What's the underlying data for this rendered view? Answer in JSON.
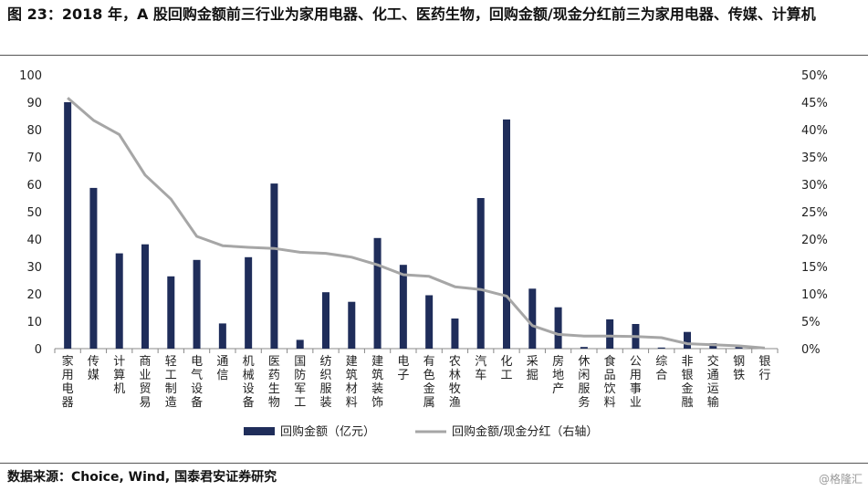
{
  "title": "图 23：2018 年，A 股回购金额前三行业为家用电器、化工、医药生物，回购金额/现金分红前三为家用电器、传媒、计算机",
  "source": "数据来源：Choice, Wind, 国泰君安证券研究",
  "watermark": "@格隆汇",
  "colors": {
    "bar": "#1f2d5a",
    "line": "#a6a6a6",
    "axis": "#888888"
  },
  "chart_data": {
    "type": "bar",
    "categories": [
      "家用电器",
      "传媒",
      "计算机",
      "商业贸易",
      "轻工制造",
      "电气设备",
      "通信",
      "机械设备",
      "医药生物",
      "国防军工",
      "纺织服装",
      "建筑材料",
      "建筑装饰",
      "电子",
      "有色金属",
      "农林牧渔",
      "汽车",
      "化工",
      "采掘",
      "房地产",
      "休闲服务",
      "食品饮料",
      "公用事业",
      "综合",
      "非银金融",
      "交通运输",
      "钢铁",
      "银行"
    ],
    "series": [
      {
        "name": "回购金额（亿元）",
        "type": "bar",
        "axis": "left",
        "values": [
          90,
          58.7,
          34.8,
          38.1,
          26.4,
          32.4,
          9.2,
          33.4,
          60.3,
          3.2,
          20.6,
          17.1,
          40.4,
          30.6,
          19.5,
          11.0,
          55.0,
          83.7,
          21.9,
          15.1,
          0.6,
          10.7,
          9.0,
          0.4,
          6.1,
          2.0,
          1.1,
          0
        ]
      },
      {
        "name": "回购金额/现金分红（右轴）",
        "type": "line",
        "axis": "right",
        "values": [
          45.8,
          41.7,
          39.1,
          31.7,
          27.3,
          20.5,
          18.8,
          18.5,
          18.3,
          17.6,
          17.4,
          16.7,
          15.3,
          13.5,
          13.2,
          11.3,
          10.8,
          9.6,
          4.2,
          2.6,
          2.3,
          2.3,
          2.2,
          2.0,
          0.9,
          0.7,
          0.5,
          0.1
        ]
      }
    ],
    "ylim": [
      0,
      100
    ],
    "yticks": [
      "0",
      "10",
      "20",
      "30",
      "40",
      "50",
      "60",
      "70",
      "80",
      "90",
      "100"
    ],
    "y2lim": [
      0,
      50
    ],
    "y2ticks": [
      "0%",
      "5%",
      "10%",
      "15%",
      "20%",
      "25%",
      "30%",
      "35%",
      "40%",
      "45%",
      "50%"
    ],
    "legend_position": "bottom",
    "grid": false
  }
}
